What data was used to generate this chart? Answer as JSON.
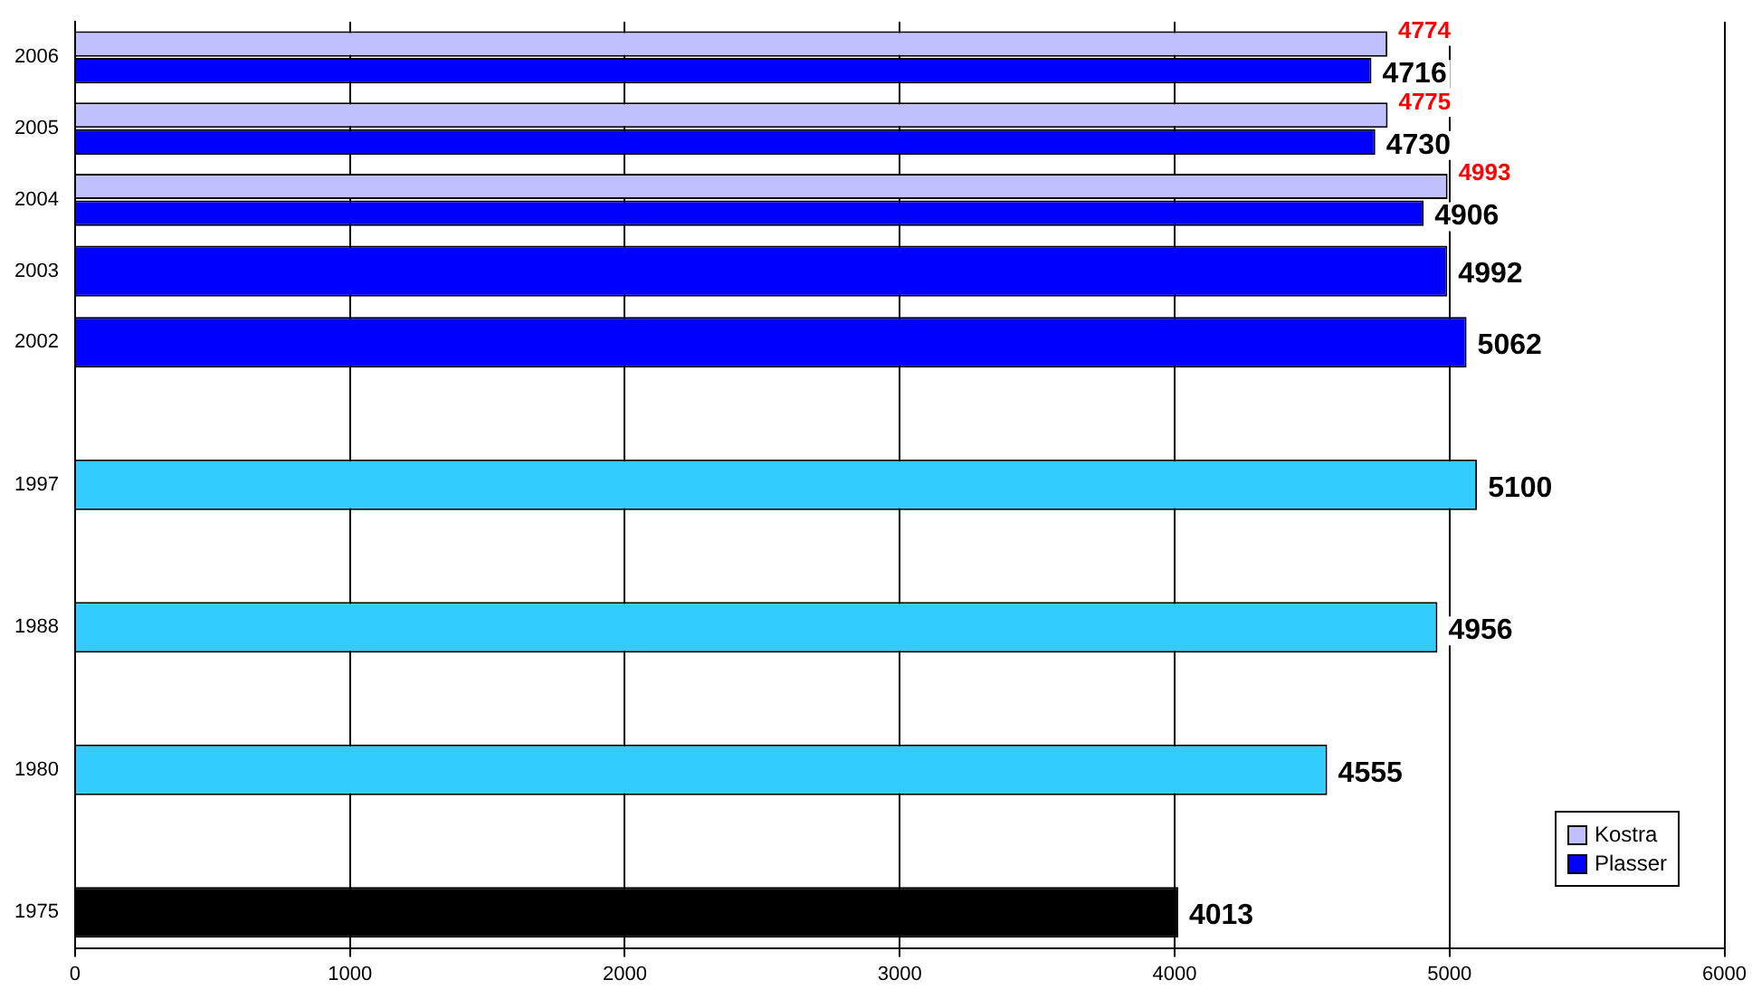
{
  "chart_data": {
    "type": "bar",
    "orientation": "horizontal",
    "categories": [
      "2006",
      "2005",
      "2004",
      "2003",
      "2002",
      null,
      "1997",
      null,
      "1988",
      null,
      "1980",
      null,
      "1975"
    ],
    "series": [
      {
        "name": "Kostra",
        "color": "#c0c0ff",
        "values": [
          4774,
          4775,
          4993,
          null,
          null,
          null,
          null,
          null,
          null,
          null,
          null,
          null,
          null
        ]
      },
      {
        "name": "Plasser",
        "color": "#0000ff",
        "colors": [
          "#0000ff",
          "#0000ff",
          "#0000ff",
          "#0000ff",
          "#0000ff",
          null,
          "#33ccff",
          null,
          "#33ccff",
          null,
          "#33ccff",
          null,
          "#000000"
        ],
        "values": [
          4716,
          4730,
          4906,
          4992,
          5062,
          null,
          5100,
          null,
          4956,
          null,
          4555,
          null,
          4013
        ]
      }
    ],
    "xlim": [
      0,
      6000
    ],
    "xticks": [
      0,
      1000,
      2000,
      3000,
      4000,
      5000,
      6000
    ],
    "grid": "x",
    "legend": "bottom right",
    "data_labels": true
  }
}
